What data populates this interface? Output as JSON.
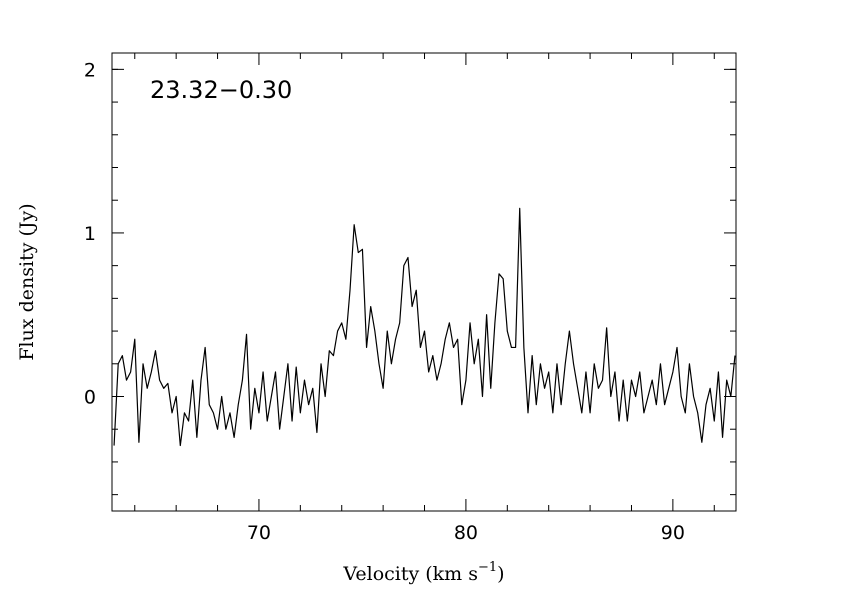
{
  "chart_data": {
    "type": "line",
    "annotation": "23.32−0.30",
    "xlabel": "Velocity (km s",
    "xlabel_exponent": "−1",
    "xlabel_end": ")",
    "ylabel": "Flux density (Jy)",
    "color": "#000000",
    "xlim": [
      62.9,
      93.05
    ],
    "ylim": [
      -0.7,
      2.1
    ],
    "xticks": [
      70,
      80,
      90
    ],
    "yticks": [
      0,
      1,
      2
    ],
    "xminor": [
      64,
      66,
      68,
      72,
      74,
      76,
      78,
      82,
      84,
      86,
      88,
      92
    ],
    "yminor": [
      -0.6,
      -0.4,
      -0.2,
      0.2,
      0.4,
      0.6,
      0.8,
      1.2,
      1.4,
      1.6,
      1.8,
      2.0
    ],
    "x": [
      63.0,
      63.2,
      63.4,
      63.6,
      63.8,
      64.0,
      64.2,
      64.4,
      64.6,
      64.8,
      65.0,
      65.2,
      65.4,
      65.6,
      65.8,
      66.0,
      66.2,
      66.4,
      66.6,
      66.8,
      67.0,
      67.2,
      67.4,
      67.6,
      67.8,
      68.0,
      68.2,
      68.4,
      68.6,
      68.8,
      69.0,
      69.2,
      69.4,
      69.6,
      69.8,
      70.0,
      70.2,
      70.4,
      70.6,
      70.8,
      71.0,
      71.2,
      71.4,
      71.6,
      71.8,
      72.0,
      72.2,
      72.4,
      72.6,
      72.8,
      73.0,
      73.2,
      73.4,
      73.6,
      73.8,
      74.0,
      74.2,
      74.4,
      74.6,
      74.8,
      75.0,
      75.2,
      75.4,
      75.6,
      75.8,
      76.0,
      76.2,
      76.4,
      76.6,
      76.8,
      77.0,
      77.2,
      77.4,
      77.6,
      77.8,
      78.0,
      78.2,
      78.4,
      78.6,
      78.8,
      79.0,
      79.2,
      79.4,
      79.6,
      79.8,
      80.0,
      80.2,
      80.4,
      80.6,
      80.8,
      81.0,
      81.2,
      81.4,
      81.6,
      81.8,
      82.0,
      82.2,
      82.4,
      82.6,
      82.8,
      83.0,
      83.2,
      83.4,
      83.6,
      83.8,
      84.0,
      84.2,
      84.4,
      84.6,
      84.8,
      85.0,
      85.2,
      85.4,
      85.6,
      85.8,
      86.0,
      86.2,
      86.4,
      86.6,
      86.8,
      87.0,
      87.2,
      87.4,
      87.6,
      87.8,
      88.0,
      88.2,
      88.4,
      88.6,
      88.8,
      89.0,
      89.2,
      89.4,
      89.6,
      89.8,
      90.0,
      90.2,
      90.4,
      90.6,
      90.8,
      91.0,
      91.2,
      91.4,
      91.6,
      91.8,
      92.0,
      92.2,
      92.4,
      92.6,
      92.8,
      93.0
    ],
    "values": [
      -0.3,
      0.2,
      0.25,
      0.1,
      0.15,
      0.35,
      -0.28,
      0.2,
      0.05,
      0.15,
      0.28,
      0.1,
      0.05,
      0.08,
      -0.1,
      0.0,
      -0.3,
      -0.1,
      -0.15,
      0.1,
      -0.25,
      0.1,
      0.3,
      -0.05,
      -0.1,
      -0.2,
      0.0,
      -0.2,
      -0.1,
      -0.25,
      -0.05,
      0.1,
      0.38,
      -0.2,
      0.05,
      -0.1,
      0.15,
      -0.15,
      0.0,
      0.15,
      -0.2,
      0.0,
      0.2,
      -0.15,
      0.18,
      -0.1,
      0.1,
      -0.05,
      0.05,
      -0.22,
      0.2,
      0.0,
      0.28,
      0.25,
      0.4,
      0.45,
      0.35,
      0.65,
      1.05,
      0.88,
      0.9,
      0.3,
      0.55,
      0.4,
      0.2,
      0.05,
      0.4,
      0.2,
      0.35,
      0.45,
      0.8,
      0.85,
      0.55,
      0.65,
      0.3,
      0.4,
      0.15,
      0.25,
      0.1,
      0.2,
      0.35,
      0.45,
      0.3,
      0.35,
      -0.05,
      0.1,
      0.45,
      0.2,
      0.35,
      0.0,
      0.5,
      0.05,
      0.45,
      0.75,
      0.72,
      0.4,
      0.3,
      0.3,
      1.15,
      0.3,
      -0.1,
      0.25,
      -0.05,
      0.2,
      0.05,
      0.15,
      -0.1,
      0.2,
      -0.05,
      0.2,
      0.4,
      0.2,
      0.05,
      -0.1,
      0.15,
      -0.1,
      0.2,
      0.05,
      0.1,
      0.42,
      0.0,
      0.15,
      -0.15,
      0.1,
      -0.15,
      0.1,
      0.0,
      0.15,
      -0.1,
      0.0,
      0.1,
      -0.05,
      0.2,
      -0.05,
      0.05,
      0.15,
      0.3,
      0.0,
      -0.1,
      0.2,
      0.0,
      -0.1,
      -0.28,
      -0.05,
      0.05,
      -0.15,
      0.15,
      -0.25,
      0.1,
      0.0,
      0.25
    ]
  }
}
